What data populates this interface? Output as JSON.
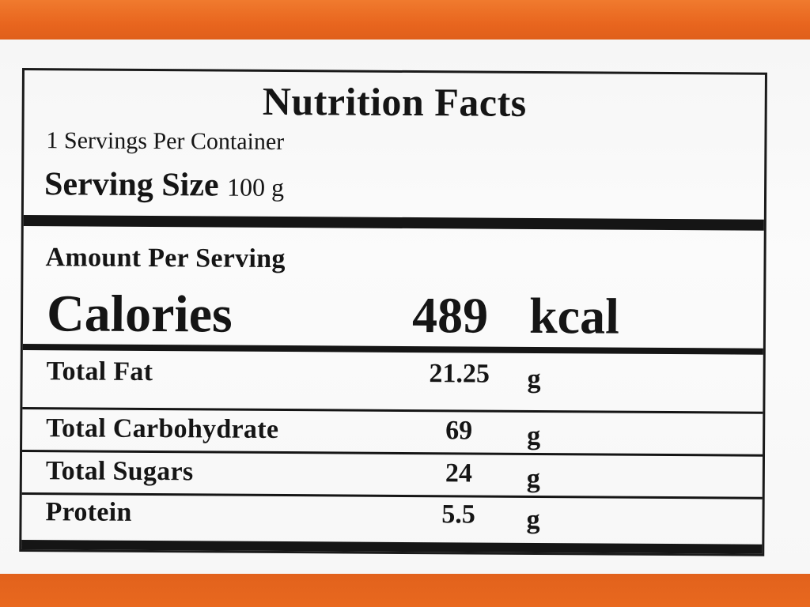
{
  "label": {
    "title": "Nutrition Facts",
    "servings_per_container": "1 Servings Per Container",
    "serving_size_label": "Serving Size",
    "serving_size_value": "100 g",
    "amount_per_serving": "Amount Per Serving",
    "calories_label": "Calories",
    "calories_value": "489",
    "calories_unit": "kcal",
    "nutrients": [
      {
        "name": "Total Fat",
        "value": "21.25",
        "unit": "g"
      },
      {
        "name": "Total Carbohydrate",
        "value": "69",
        "unit": "g"
      },
      {
        "name": "Total Sugars",
        "value": "24",
        "unit": "g"
      },
      {
        "name": "Protein",
        "value": "5.5",
        "unit": "g"
      }
    ]
  },
  "colors": {
    "package_orange": "#e8641c",
    "label_white": "#f8f8f8",
    "ink": "#151515"
  }
}
